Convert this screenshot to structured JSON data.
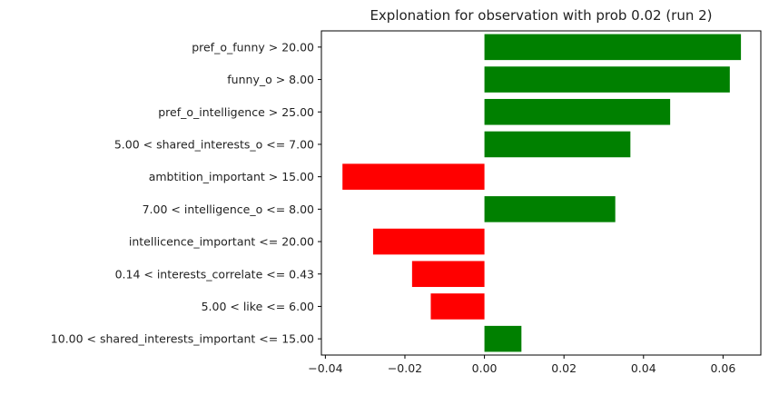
{
  "chart_data": {
    "type": "bar",
    "orientation": "horizontal",
    "title": "Explonation for observation with prob 0.02 (run 2)",
    "xlabel": "",
    "ylabel": "",
    "xlim": [
      -0.041,
      0.0695
    ],
    "xticks": [
      -0.04,
      -0.02,
      0.0,
      0.02,
      0.04,
      0.06
    ],
    "xtick_labels": [
      "−0.04",
      "−0.02",
      "0.00",
      "0.02",
      "0.04",
      "0.06"
    ],
    "grid": false,
    "legend": "none",
    "colors": {
      "positive": "#008000",
      "negative": "#ff0000"
    },
    "categories": [
      "pref_o_funny > 20.00",
      "funny_o > 8.00",
      "pref_o_intelligence > 25.00",
      "5.00 < shared_interests_o <= 7.00",
      "ambtition_important > 15.00",
      "7.00 < intelligence_o <= 8.00",
      "intellicence_important <= 20.00",
      "0.14 < interests_correlate <= 0.43",
      "5.00 < like <= 6.00",
      "10.00 < shared_interests_important <= 15.00"
    ],
    "values": [
      0.0645,
      0.0617,
      0.0467,
      0.0367,
      -0.0357,
      0.0329,
      -0.028,
      -0.0182,
      -0.0135,
      0.0093
    ]
  }
}
